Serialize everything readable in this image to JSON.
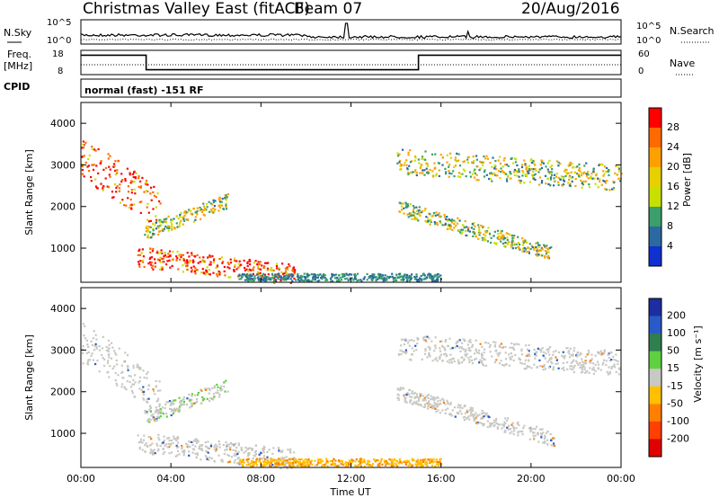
{
  "header": {
    "station": "Christmas Valley East (fitACF)",
    "beam": "Beam 07",
    "date": "20/Aug/2016"
  },
  "noise_panel": {
    "left_label": "N.Sky",
    "right_label": "N.Search",
    "tick_top": "10^5",
    "tick_bottom": "10^0"
  },
  "freq_panel": {
    "left_label_line1": "Freq.",
    "left_label_line2": "[MHz]",
    "right_label": "Nave",
    "left_ticks": [
      "18",
      "8"
    ],
    "right_ticks": [
      "60",
      "0"
    ]
  },
  "cpid": {
    "label": "CPID",
    "value": "normal (fast) -151 RF"
  },
  "power_panel": {
    "ylabel": "Slant Range [km]",
    "yticks": [
      "4000",
      "3000",
      "2000",
      "1000"
    ],
    "colorbar_label": "Power [dB]",
    "colorbar_ticks": [
      "28",
      "24",
      "20",
      "16",
      "12",
      "8",
      "4"
    ]
  },
  "velocity_panel": {
    "ylabel": "Slant Range [km]",
    "yticks": [
      "4000",
      "3000",
      "2000",
      "1000"
    ],
    "colorbar_label": "Velocity [m s⁻¹]",
    "colorbar_ticks": [
      "200",
      "100",
      "50",
      "15",
      "-15",
      "-50",
      "-100",
      "-200"
    ]
  },
  "xaxis": {
    "label": "Time UT",
    "ticks": [
      "00:00",
      "04:00",
      "08:00",
      "12:00",
      "16:00",
      "20:00",
      "00:00"
    ]
  },
  "colors": {
    "power_scale": [
      "#ff0000",
      "#ff6a00",
      "#ffa000",
      "#e6d000",
      "#c8e000",
      "#3a9f6a",
      "#2a6aa0",
      "#1030d0"
    ],
    "velocity_scale": [
      "#1c2ea0",
      "#2a5ac8",
      "#2f7f4f",
      "#5fd040",
      "#c8c8c4",
      "#ffc000",
      "#ff8000",
      "#ff4000",
      "#e00000"
    ]
  },
  "chart_data": [
    {
      "type": "line",
      "name": "noise",
      "x_range_hours": [
        0,
        24
      ],
      "spikes_hours": [
        11.8,
        17.2
      ],
      "log_scale": true
    },
    {
      "type": "line",
      "name": "frequency",
      "x_range_hours": [
        0,
        24
      ],
      "freq_steps": [
        {
          "from": 0,
          "to": 2.9,
          "value": 16
        },
        {
          "from": 2.9,
          "to": 15.0,
          "value": 10
        },
        {
          "from": 15.0,
          "to": 24,
          "value": 16
        }
      ],
      "ylim": [
        8,
        18
      ]
    },
    {
      "type": "heatmap",
      "name": "power",
      "x_range_hours": [
        0,
        24
      ],
      "ylim_km": [
        180,
        4500
      ],
      "clim_db": [
        0,
        30
      ]
    },
    {
      "type": "heatmap",
      "name": "velocity",
      "x_range_hours": [
        0,
        24
      ],
      "ylim_km": [
        180,
        4500
      ],
      "clim_ms": [
        -250,
        250
      ]
    }
  ]
}
